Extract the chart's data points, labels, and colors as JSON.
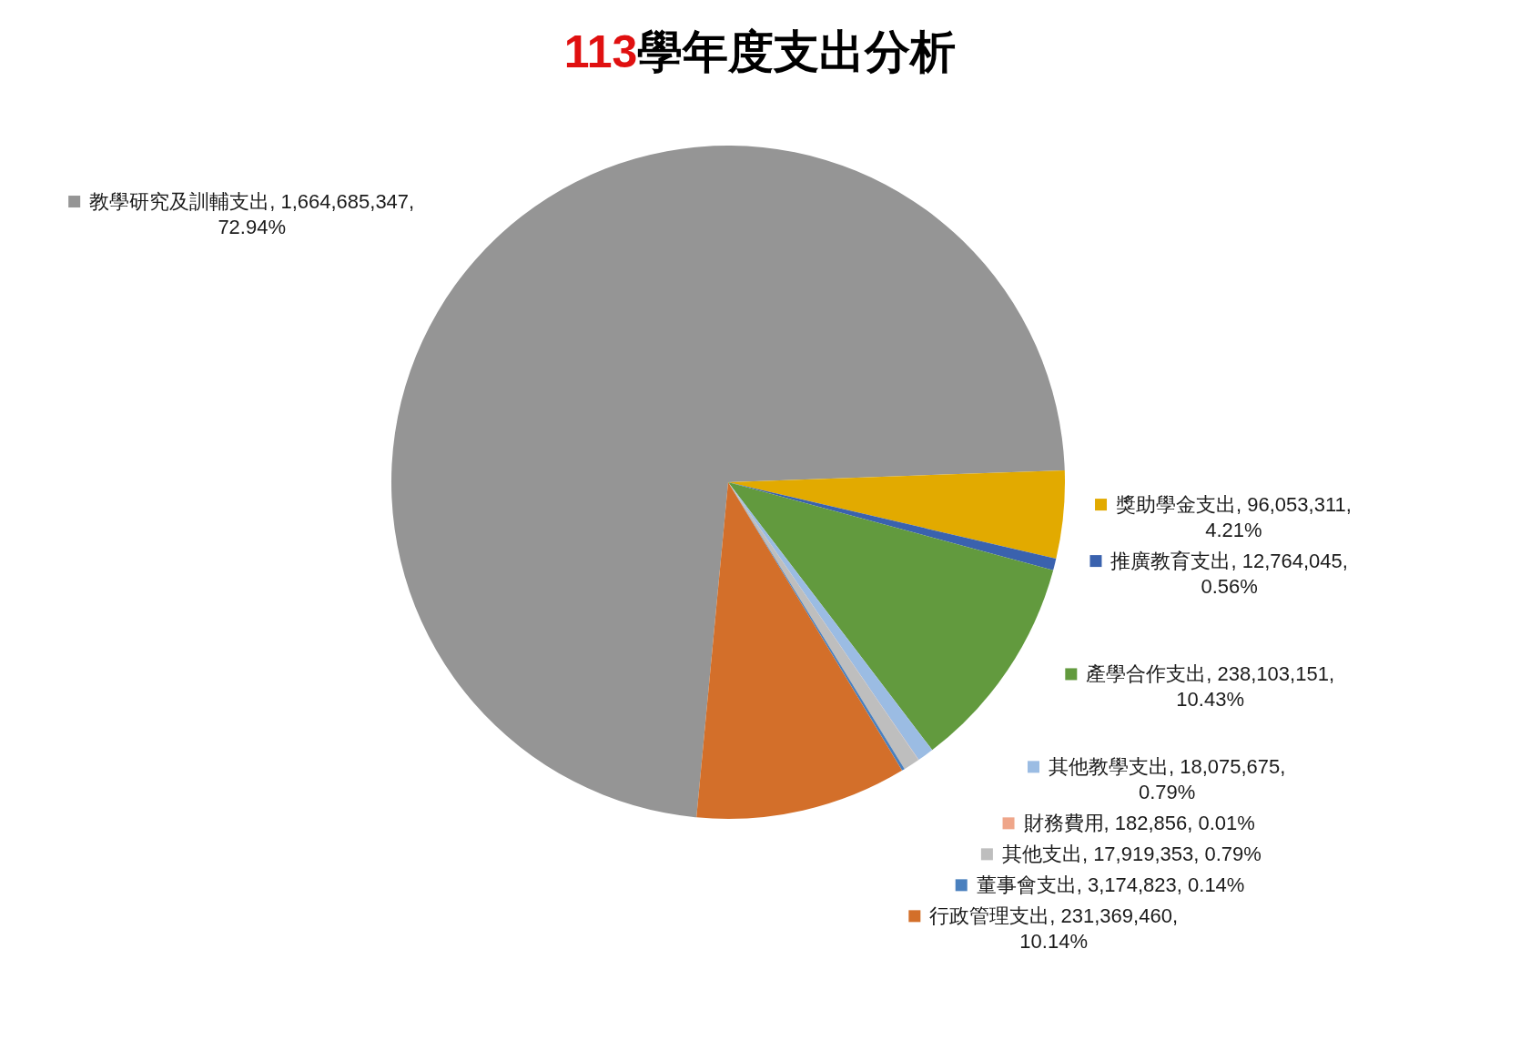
{
  "chart_data": {
    "type": "pie",
    "title": "113學年度支出分析",
    "categories": [
      "教學研究及訓輔支出",
      "獎助學金支出",
      "推廣教育支出",
      "產學合作支出",
      "其他教學支出",
      "財務費用",
      "其他支出",
      "董事會支出",
      "行政管理支出"
    ],
    "values": [
      1664685347,
      96053311,
      12764045,
      238103151,
      18075675,
      182856,
      17919353,
      3174823,
      231369460
    ],
    "colors": [
      "#959595",
      "#e2aa00",
      "#3a62ae",
      "#629a3e",
      "#9bbce3",
      "#efa68a",
      "#bebebe",
      "#4a80be",
      "#d36f2a"
    ],
    "value_labels": [
      "1,664,685,347, 72.94%",
      "96,053,311, 4.21%",
      "12,764,045, 0.56%",
      "238,103,151, 10.43%",
      "18,075,675, 0.79%",
      "182,856, 0.01%",
      "17,919,353, 0.79%",
      "3,174,823, 0.14%",
      "231,369,460, 10.14%"
    ],
    "legend": "right"
  }
}
